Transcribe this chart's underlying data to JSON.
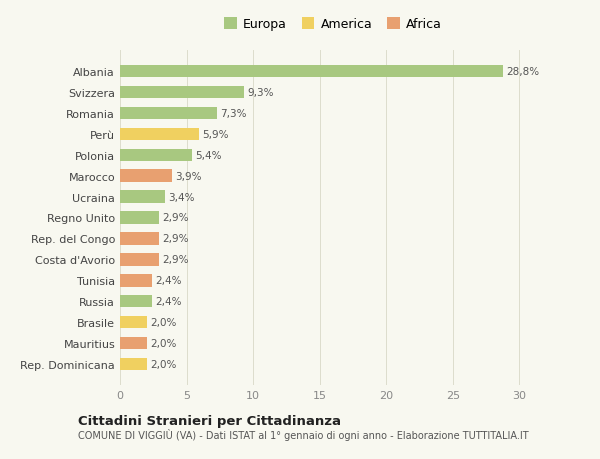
{
  "categories": [
    "Rep. Dominicana",
    "Mauritius",
    "Brasile",
    "Russia",
    "Tunisia",
    "Costa d'Avorio",
    "Rep. del Congo",
    "Regno Unito",
    "Ucraina",
    "Marocco",
    "Polonia",
    "Perù",
    "Romania",
    "Svizzera",
    "Albania"
  ],
  "values": [
    2.0,
    2.0,
    2.0,
    2.4,
    2.4,
    2.9,
    2.9,
    2.9,
    3.4,
    3.9,
    5.4,
    5.9,
    7.3,
    9.3,
    28.8
  ],
  "colors": [
    "#f0d060",
    "#e8a070",
    "#f0d060",
    "#a8c880",
    "#e8a070",
    "#e8a070",
    "#e8a070",
    "#a8c880",
    "#a8c880",
    "#e8a070",
    "#a8c880",
    "#f0d060",
    "#a8c880",
    "#a8c880",
    "#a8c880"
  ],
  "labels": [
    "2,0%",
    "2,0%",
    "2,0%",
    "2,4%",
    "2,4%",
    "2,9%",
    "2,9%",
    "2,9%",
    "3,4%",
    "3,9%",
    "5,4%",
    "5,9%",
    "7,3%",
    "9,3%",
    "28,8%"
  ],
  "legend_labels": [
    "Europa",
    "America",
    "Africa"
  ],
  "legend_colors": [
    "#a8c880",
    "#f0d060",
    "#e8a070"
  ],
  "title": "Cittadini Stranieri per Cittadinanza",
  "subtitle": "COMUNE DI VIGGIÙ (VA) - Dati ISTAT al 1° gennaio di ogni anno - Elaborazione TUTTITALIA.IT",
  "xlim": [
    0,
    32
  ],
  "xticks": [
    0,
    5,
    10,
    15,
    20,
    25,
    30
  ],
  "background_color": "#f8f8f0",
  "grid_color": "#ddddcc",
  "bar_height": 0.6
}
